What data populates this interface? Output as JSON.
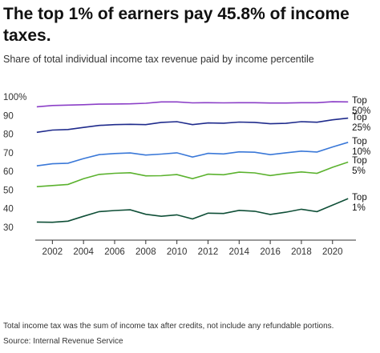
{
  "chart_data": {
    "type": "line",
    "title": "The top 1% of earners pay 45.8% of income taxes.",
    "subtitle": "Share of total individual income tax revenue paid by income percentile",
    "note": "Total income tax was the sum of income tax after credits, not include any refundable portions.",
    "source": "Source: Internal Revenue Service",
    "x": [
      2001,
      2002,
      2003,
      2004,
      2005,
      2006,
      2007,
      2008,
      2009,
      2010,
      2011,
      2012,
      2013,
      2014,
      2015,
      2016,
      2017,
      2018,
      2019,
      2020,
      2021
    ],
    "series": [
      {
        "name": "Top 50%",
        "color": "#8b3fc7",
        "values": [
          95.1,
          95.8,
          96.0,
          96.2,
          96.5,
          96.6,
          96.7,
          97.0,
          97.7,
          97.7,
          97.2,
          97.3,
          97.2,
          97.3,
          97.3,
          97.1,
          97.1,
          97.3,
          97.3,
          97.8,
          97.7
        ]
      },
      {
        "name": "Top 25%",
        "color": "#1f2b8c",
        "values": [
          81.4,
          82.6,
          82.9,
          84.0,
          85.1,
          85.5,
          85.7,
          85.5,
          86.7,
          87.1,
          85.5,
          86.4,
          86.3,
          86.9,
          86.7,
          86.0,
          86.2,
          87.1,
          86.8,
          88.1,
          89.0
        ]
      },
      {
        "name": "Top 10%",
        "color": "#3a78d8",
        "values": [
          63.4,
          64.5,
          64.8,
          67.3,
          69.4,
          70.0,
          70.3,
          69.2,
          69.7,
          70.4,
          68.1,
          70.1,
          69.8,
          70.9,
          70.7,
          69.4,
          70.4,
          71.3,
          70.8,
          73.5,
          76.0
        ]
      },
      {
        "name": "Top 5%",
        "color": "#5bb22e",
        "values": [
          52.2,
          52.8,
          53.4,
          56.5,
          58.8,
          59.4,
          59.7,
          58.0,
          58.1,
          58.7,
          56.5,
          58.9,
          58.6,
          60.0,
          59.6,
          58.2,
          59.3,
          60.1,
          59.4,
          62.6,
          65.4
        ]
      },
      {
        "name": "Top 1%",
        "color": "#0f4f37",
        "values": [
          33.2,
          33.1,
          33.7,
          36.3,
          38.8,
          39.4,
          39.8,
          37.4,
          36.3,
          37.1,
          34.9,
          38.0,
          37.8,
          39.5,
          39.0,
          37.3,
          38.5,
          40.1,
          38.8,
          42.3,
          45.8
        ]
      }
    ],
    "xlim": [
      2000.9,
      2021.3
    ],
    "xticks": [
      2002,
      2004,
      2006,
      2008,
      2010,
      2012,
      2014,
      2016,
      2018,
      2020
    ],
    "ylim": [
      23.5,
      103
    ],
    "yticks": [
      {
        "value": 100,
        "label": "100%"
      },
      90,
      80,
      70,
      60,
      50,
      40,
      30
    ],
    "grid": false
  }
}
